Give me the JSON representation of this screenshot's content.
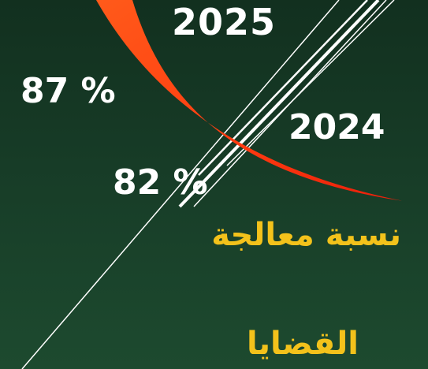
{
  "year_current": "2025",
  "year_previous": "2024",
  "rate_current": "87 %",
  "rate_previous": "82 %",
  "caption_line1": "نسبة معالجة",
  "caption_line2": "القضايا",
  "colors": {
    "background": "#173c27",
    "accent_arc": "#ff3a10",
    "caption": "#f3c21b",
    "text": "#ffffff"
  }
}
